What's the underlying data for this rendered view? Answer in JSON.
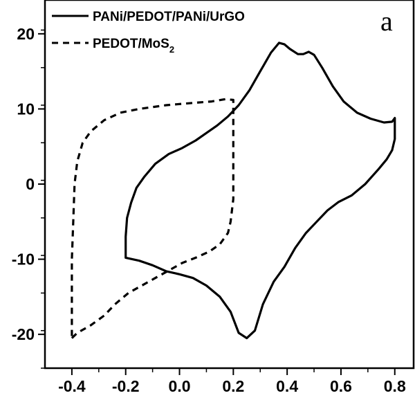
{
  "chart_data": {
    "type": "line",
    "title": "",
    "xlabel": "",
    "ylabel": "",
    "panel_label": "a",
    "xlim": [
      -0.5,
      0.87
    ],
    "ylim": [
      -24.5,
      24.5
    ],
    "x_ticks": [
      -0.4,
      -0.2,
      0.0,
      0.2,
      0.4,
      0.6,
      0.8
    ],
    "x_tick_labels": [
      "-0.4",
      "-0.2",
      "0.0",
      "0.2",
      "0.4",
      "0.6",
      "0.8"
    ],
    "y_ticks": [
      -20,
      -10,
      0,
      10,
      20
    ],
    "y_tick_labels": [
      "-20",
      "-10",
      "0",
      "10",
      "20"
    ],
    "legend_position": "top-left",
    "series": [
      {
        "name": "PANi/PEDOT/PANi/UrGO",
        "label_main": "PANi/PEDOT/PANi/UrGO",
        "label_sub": "",
        "style": "solid",
        "color": "#000000",
        "points": [
          [
            -0.2,
            -9.8
          ],
          [
            -0.2,
            -7.0
          ],
          [
            -0.195,
            -4.5
          ],
          [
            -0.18,
            -2.5
          ],
          [
            -0.16,
            -0.5
          ],
          [
            -0.13,
            1.0
          ],
          [
            -0.09,
            2.7
          ],
          [
            -0.04,
            4.0
          ],
          [
            0.01,
            4.8
          ],
          [
            0.06,
            5.8
          ],
          [
            0.1,
            6.8
          ],
          [
            0.14,
            7.8
          ],
          [
            0.18,
            9.0
          ],
          [
            0.22,
            10.5
          ],
          [
            0.26,
            12.5
          ],
          [
            0.3,
            15.0
          ],
          [
            0.34,
            17.5
          ],
          [
            0.37,
            18.8
          ],
          [
            0.39,
            18.6
          ],
          [
            0.41,
            18.0
          ],
          [
            0.44,
            17.3
          ],
          [
            0.46,
            17.3
          ],
          [
            0.48,
            17.6
          ],
          [
            0.5,
            17.2
          ],
          [
            0.53,
            15.5
          ],
          [
            0.57,
            13.0
          ],
          [
            0.61,
            11.0
          ],
          [
            0.66,
            9.5
          ],
          [
            0.71,
            8.7
          ],
          [
            0.76,
            8.2
          ],
          [
            0.79,
            8.3
          ],
          [
            0.8,
            8.8
          ],
          [
            0.8,
            6.0
          ],
          [
            0.79,
            4.5
          ],
          [
            0.77,
            3.3
          ],
          [
            0.74,
            2.0
          ],
          [
            0.69,
            0.0
          ],
          [
            0.64,
            -1.5
          ],
          [
            0.59,
            -2.4
          ],
          [
            0.55,
            -3.5
          ],
          [
            0.51,
            -5.0
          ],
          [
            0.47,
            -6.5
          ],
          [
            0.43,
            -8.5
          ],
          [
            0.39,
            -11.0
          ],
          [
            0.35,
            -13.0
          ],
          [
            0.31,
            -16.0
          ],
          [
            0.28,
            -19.5
          ],
          [
            0.25,
            -20.5
          ],
          [
            0.22,
            -19.8
          ],
          [
            0.19,
            -17.0
          ],
          [
            0.15,
            -15.0
          ],
          [
            0.1,
            -13.5
          ],
          [
            0.05,
            -12.5
          ],
          [
            0.0,
            -12.0
          ],
          [
            -0.05,
            -11.6
          ],
          [
            -0.1,
            -10.8
          ],
          [
            -0.15,
            -10.2
          ],
          [
            -0.2,
            -9.8
          ]
        ]
      },
      {
        "name": "PEDOT/MoS2",
        "label_main": "PEDOT/MoS",
        "label_sub": "2",
        "style": "dashed",
        "color": "#000000",
        "points": [
          [
            -0.4,
            -20.5
          ],
          [
            -0.38,
            -19.8
          ],
          [
            -0.33,
            -18.8
          ],
          [
            -0.28,
            -17.5
          ],
          [
            -0.24,
            -16.0
          ],
          [
            -0.19,
            -14.5
          ],
          [
            -0.14,
            -13.5
          ],
          [
            -0.09,
            -12.5
          ],
          [
            -0.04,
            -11.5
          ],
          [
            0.01,
            -10.5
          ],
          [
            0.06,
            -9.8
          ],
          [
            0.11,
            -9.0
          ],
          [
            0.15,
            -8.0
          ],
          [
            0.18,
            -6.5
          ],
          [
            0.19,
            -5.0
          ],
          [
            0.2,
            -2.0
          ],
          [
            0.2,
            2.0
          ],
          [
            0.2,
            6.0
          ],
          [
            0.2,
            9.0
          ],
          [
            0.2,
            11.2
          ],
          [
            0.17,
            11.3
          ],
          [
            0.12,
            11.0
          ],
          [
            0.05,
            10.8
          ],
          [
            -0.05,
            10.5
          ],
          [
            -0.15,
            10.0
          ],
          [
            -0.22,
            9.5
          ],
          [
            -0.28,
            8.5
          ],
          [
            -0.33,
            7.0
          ],
          [
            -0.36,
            5.5
          ],
          [
            -0.38,
            3.0
          ],
          [
            -0.39,
            0.0
          ],
          [
            -0.395,
            -5.0
          ],
          [
            -0.4,
            -10.0
          ],
          [
            -0.4,
            -15.0
          ],
          [
            -0.4,
            -20.5
          ]
        ]
      }
    ]
  }
}
